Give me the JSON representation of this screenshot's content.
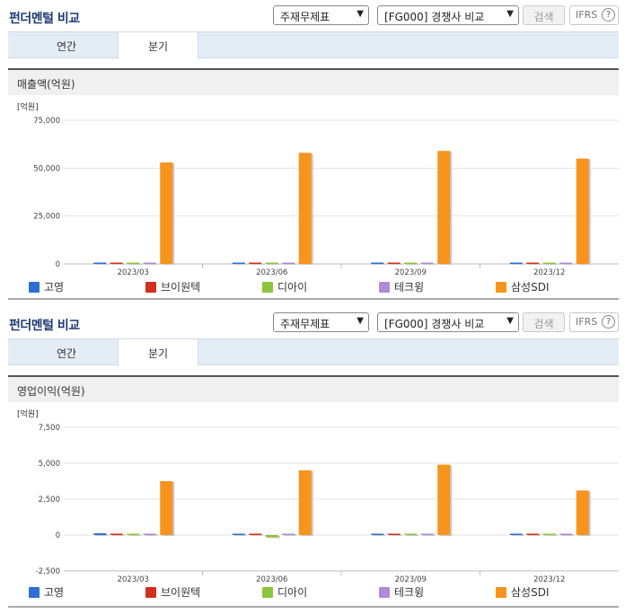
{
  "legend": [
    {
      "name": "고영",
      "color": "#2d6fd2"
    },
    {
      "name": "브이원텍",
      "color": "#d0301e"
    },
    {
      "name": "디아이",
      "color": "#8bc53f"
    },
    {
      "name": "테크윙",
      "color": "#b08ad8"
    },
    {
      "name": "삼성SDI",
      "color": "#f7941d"
    }
  ],
  "panels": [
    {
      "title": "펀더멘털 비교",
      "statement_select": "주재무제표",
      "peer_select": "[FG000] 경쟁사 비교",
      "search_label": "검색",
      "ifrs_label": "IFRS",
      "help_icon": "?",
      "tabs": [
        "연간",
        "분기"
      ],
      "active_tab": "분기",
      "metric_label": "매출액(억원)"
    },
    {
      "title": "펀더멘털 비교",
      "statement_select": "주재무제표",
      "peer_select": "[FG000] 경쟁사 비교",
      "search_label": "검색",
      "ifrs_label": "IFRS",
      "help_icon": "?",
      "tabs": [
        "연간",
        "분기"
      ],
      "active_tab": "분기",
      "metric_label": "영업이익(억원)"
    }
  ],
  "chart_data": [
    {
      "type": "bar",
      "title": "",
      "ylabel": "[억원]",
      "categories": [
        "2023/03",
        "2023/06",
        "2023/09",
        "2023/12"
      ],
      "ylim": [
        0,
        75000
      ],
      "yticks": [
        0,
        25000,
        50000,
        75000
      ],
      "ytick_labels": [
        "0",
        "25,000",
        "50,000",
        "75,000"
      ],
      "grid": true,
      "legend_position": "bottom",
      "series": [
        {
          "name": "고영",
          "values": [
            600,
            650,
            500,
            540
          ]
        },
        {
          "name": "브이원텍",
          "values": [
            150,
            130,
            120,
            110
          ]
        },
        {
          "name": "디아이",
          "values": [
            300,
            280,
            260,
            250
          ]
        },
        {
          "name": "테크윙",
          "values": [
            450,
            350,
            420,
            500
          ]
        },
        {
          "name": "삼성SDI",
          "values": [
            53000,
            58000,
            59000,
            55000
          ]
        }
      ]
    },
    {
      "type": "bar",
      "title": "",
      "ylabel": "[억원]",
      "categories": [
        "2023/03",
        "2023/06",
        "2023/09",
        "2023/12"
      ],
      "ylim": [
        -2500,
        7500
      ],
      "yticks": [
        -2500,
        0,
        2500,
        5000,
        7500
      ],
      "ytick_labels": [
        "-2,500",
        "0",
        "2,500",
        "5,000",
        "7,500"
      ],
      "grid": true,
      "legend_position": "bottom",
      "series": [
        {
          "name": "고영",
          "values": [
            120,
            30,
            20,
            -80
          ]
        },
        {
          "name": "브이원텍",
          "values": [
            10,
            5,
            5,
            5
          ]
        },
        {
          "name": "디아이",
          "values": [
            -20,
            -150,
            10,
            -10
          ]
        },
        {
          "name": "테크윙",
          "values": [
            -40,
            -30,
            -10,
            -20
          ]
        },
        {
          "name": "삼성SDI",
          "values": [
            3750,
            4500,
            4900,
            3100
          ]
        }
      ]
    }
  ]
}
